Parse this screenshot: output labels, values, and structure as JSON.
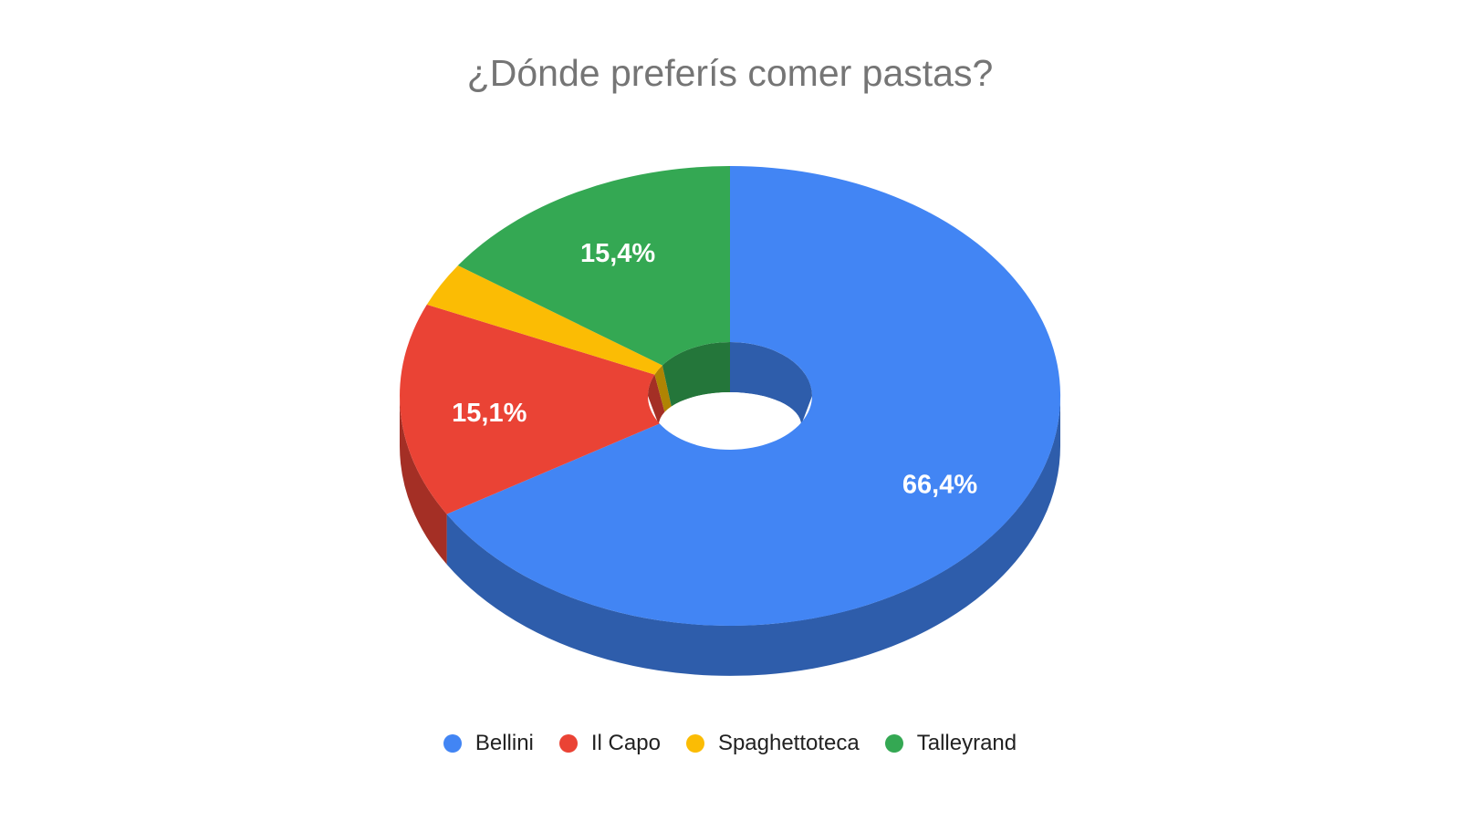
{
  "chart_data": {
    "type": "pie",
    "variant": "3d-donut",
    "title": "¿Dónde preferís comer pastas?",
    "categories": [
      "Bellini",
      "Il Capo",
      "Spaghettoteca",
      "Talleyrand"
    ],
    "values": [
      66.4,
      15.1,
      3.1,
      15.4
    ],
    "slice_labels": [
      "66,4%",
      "15,1%",
      "",
      "15,4%"
    ],
    "colors": [
      "#4285F4",
      "#EA4335",
      "#FBBC04",
      "#34A853"
    ],
    "title_color": "#757575",
    "slice_label_color": "#ffffff",
    "legend_text_color": "#222222",
    "background_color": "#ffffff",
    "legend_position": "bottom",
    "start_angle_deg": 0,
    "direction": "clockwise",
    "min_label_pct": 5
  }
}
